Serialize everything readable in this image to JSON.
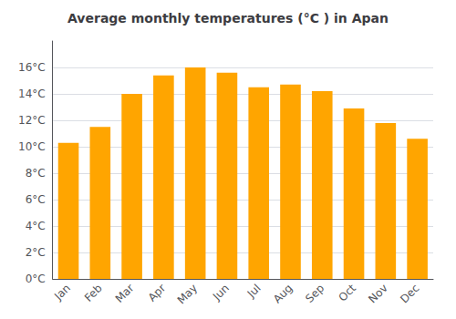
{
  "chart_data": {
    "type": "bar",
    "title": "Average monthly temperatures (°C ) in Apan",
    "categories": [
      "Jan",
      "Feb",
      "Mar",
      "Apr",
      "May",
      "Jun",
      "Jul",
      "Aug",
      "Sep",
      "Oct",
      "Nov",
      "Dec"
    ],
    "values": [
      10.3,
      11.5,
      14.0,
      15.4,
      16.0,
      15.6,
      14.5,
      14.7,
      14.2,
      12.9,
      11.8,
      10.6
    ],
    "color": "#FFA500",
    "ylim": [
      0,
      18
    ],
    "yticks": [
      {
        "value": 0,
        "label": "0°C"
      },
      {
        "value": 2,
        "label": "2°C"
      },
      {
        "value": 4,
        "label": "4°C"
      },
      {
        "value": 6,
        "label": "6°C"
      },
      {
        "value": 8,
        "label": "8°C"
      },
      {
        "value": 10,
        "label": "10°C"
      },
      {
        "value": 12,
        "label": "12°C"
      },
      {
        "value": 14,
        "label": "14°C"
      },
      {
        "value": 16,
        "label": "16°C"
      }
    ],
    "grid": true
  }
}
